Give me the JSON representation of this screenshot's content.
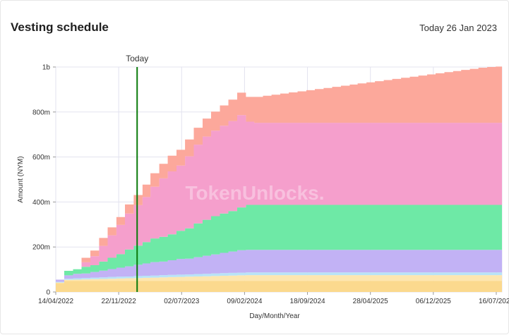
{
  "header": {
    "title": "Vesting schedule",
    "today_label": "Today 26 Jan 2023"
  },
  "watermark": "TokenUnlocks.",
  "chart_data": {
    "type": "area",
    "stacked": true,
    "xlabel": "Day/Month/Year",
    "ylabel": "Amount (NYM)",
    "ylim": [
      0,
      1000000000
    ],
    "yticks": [
      0,
      200000000,
      400000000,
      600000000,
      800000000,
      1000000000
    ],
    "ytick_labels": [
      "0",
      "200m",
      "400m",
      "600m",
      "800m",
      "1b"
    ],
    "xlim": [
      "2022-04-14",
      "2026-08-05"
    ],
    "xticks": [
      "2022-04-14",
      "2022-11-22",
      "2023-07-02",
      "2024-02-09",
      "2024-09-18",
      "2025-04-28",
      "2025-12-06",
      "2026-07-16"
    ],
    "xtick_labels": [
      "14/04/2022",
      "22/11/2022",
      "02/07/2023",
      "09/02/2024",
      "18/09/2024",
      "28/04/2025",
      "06/12/2025",
      "16/07/2026"
    ],
    "today_marker": {
      "date": "2023-01-26",
      "label": "Today"
    },
    "grid": true,
    "dates": [
      "2022-04-14",
      "2022-05-14",
      "2022-06-14",
      "2022-07-14",
      "2022-08-14",
      "2022-09-14",
      "2022-10-14",
      "2022-11-14",
      "2022-12-14",
      "2023-01-14",
      "2023-02-14",
      "2023-03-14",
      "2023-04-14",
      "2023-05-14",
      "2023-06-14",
      "2023-07-14",
      "2023-08-14",
      "2023-09-14",
      "2023-10-14",
      "2023-11-14",
      "2023-12-14",
      "2024-01-14",
      "2024-02-14",
      "2024-03-14",
      "2024-04-14",
      "2024-05-14",
      "2024-06-14",
      "2024-07-14",
      "2024-08-14",
      "2024-09-14",
      "2024-10-14",
      "2024-11-14",
      "2024-12-14",
      "2025-01-14",
      "2025-02-14",
      "2025-03-14",
      "2025-04-14",
      "2025-05-14",
      "2025-06-14",
      "2025-07-14",
      "2025-08-14",
      "2025-09-14",
      "2025-10-14",
      "2025-11-14",
      "2025-12-14",
      "2026-01-14",
      "2026-02-14",
      "2026-03-14",
      "2026-04-14",
      "2026-05-14",
      "2026-06-14",
      "2026-07-14",
      "2026-08-05"
    ],
    "series": [
      {
        "color": "#fbd98e",
        "values": [
          40,
          50,
          50,
          50,
          50,
          50,
          50,
          50,
          50,
          50,
          50,
          50,
          50,
          50,
          50,
          50,
          50,
          50,
          50,
          50,
          50,
          50,
          50,
          50,
          50,
          50,
          50,
          50,
          50,
          50,
          50,
          50,
          50,
          50,
          50,
          50,
          50,
          50,
          50,
          50,
          50,
          50,
          50,
          50,
          50,
          50,
          50,
          50,
          50,
          50,
          50,
          50,
          50
        ]
      },
      {
        "color": "#fde6b0",
        "values": [
          2,
          4,
          5,
          6,
          7,
          8,
          9,
          10,
          11,
          12,
          13,
          14,
          15,
          16,
          17,
          18,
          19,
          20,
          21,
          22,
          23,
          24,
          25,
          25,
          25,
          25,
          25,
          25,
          25,
          25,
          25,
          25,
          25,
          25,
          25,
          25,
          25,
          25,
          25,
          25,
          25,
          25,
          25,
          25,
          25,
          25,
          25,
          25,
          25,
          25,
          25,
          25,
          25
        ]
      },
      {
        "color": "#b9e3f7",
        "values": [
          3,
          5,
          6,
          6,
          7,
          7,
          8,
          8,
          8,
          9,
          9,
          9,
          10,
          10,
          10,
          10,
          11,
          11,
          11,
          12,
          12,
          12,
          12,
          12,
          12,
          12,
          12,
          12,
          12,
          12,
          12,
          12,
          12,
          12,
          12,
          12,
          12,
          12,
          12,
          12,
          12,
          12,
          12,
          12,
          12,
          12,
          12,
          12,
          12,
          12,
          12,
          12,
          12
        ]
      },
      {
        "color": "#c2b2f5",
        "values": [
          10,
          15,
          20,
          20,
          25,
          30,
          35,
          40,
          45,
          50,
          55,
          60,
          60,
          65,
          70,
          70,
          75,
          80,
          85,
          90,
          95,
          100,
          100,
          100,
          100,
          100,
          100,
          100,
          100,
          100,
          100,
          100,
          100,
          100,
          100,
          100,
          100,
          100,
          100,
          100,
          100,
          100,
          100,
          100,
          100,
          100,
          100,
          100,
          100,
          100,
          100,
          100,
          100
        ]
      },
      {
        "color": "#6ee9a6",
        "values": [
          0,
          20,
          20,
          30,
          30,
          40,
          50,
          60,
          75,
          85,
          95,
          105,
          110,
          115,
          125,
          135,
          150,
          160,
          170,
          175,
          180,
          190,
          200,
          200,
          200,
          200,
          200,
          200,
          200,
          200,
          200,
          200,
          200,
          200,
          200,
          200,
          200,
          200,
          200,
          200,
          200,
          200,
          200,
          200,
          200,
          200,
          200,
          200,
          200,
          200,
          200,
          200,
          200
        ]
      },
      {
        "color": "#f59fcc",
        "values": [
          0,
          0,
          0,
          20,
          40,
          70,
          100,
          130,
          160,
          180,
          200,
          230,
          260,
          280,
          290,
          320,
          350,
          370,
          380,
          390,
          400,
          410,
          370,
          365,
          365,
          365,
          365,
          365,
          365,
          365,
          365,
          365,
          365,
          365,
          365,
          365,
          365,
          365,
          365,
          365,
          365,
          365,
          365,
          365,
          365,
          365,
          365,
          365,
          365,
          365,
          365,
          365,
          365
        ]
      },
      {
        "color": "#fca89b",
        "values": [
          0,
          0,
          0,
          20,
          25,
          35,
          35,
          35,
          40,
          45,
          55,
          60,
          65,
          70,
          70,
          75,
          75,
          80,
          85,
          90,
          95,
          100,
          110,
          115,
          120,
          125,
          130,
          135,
          140,
          145,
          150,
          155,
          160,
          165,
          170,
          175,
          180,
          185,
          190,
          195,
          200,
          205,
          210,
          215,
          220,
          225,
          230,
          235,
          240,
          245,
          248,
          250,
          250
        ]
      }
    ]
  }
}
